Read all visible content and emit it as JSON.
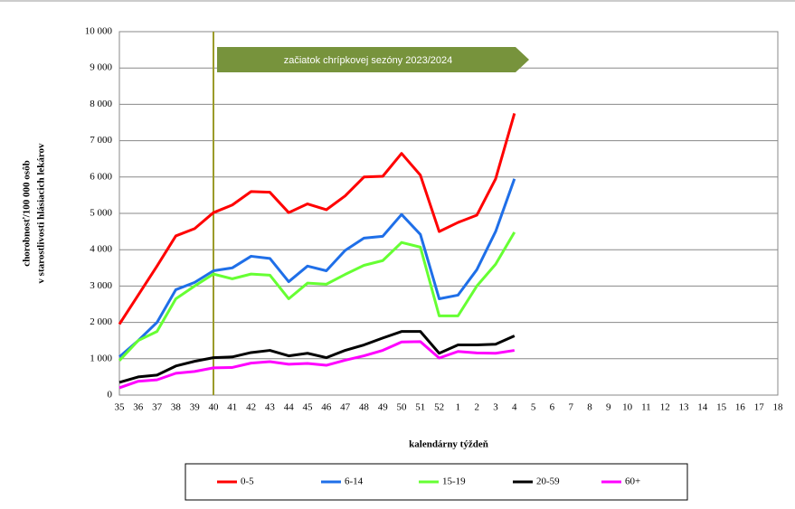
{
  "chart_data": {
    "type": "line",
    "y_label": [
      "chorobnosť/100 000 osôb",
      "v starostlivosti hlásiacich lekárov"
    ],
    "x_label": "kalendárny týždeň",
    "annotation": {
      "text": "začiatok chrípkovej sezóny 2023/2024",
      "category": "40"
    },
    "categories": [
      "35",
      "36",
      "37",
      "38",
      "39",
      "40",
      "41",
      "42",
      "43",
      "44",
      "45",
      "46",
      "47",
      "48",
      "49",
      "50",
      "51",
      "52",
      "1",
      "2",
      "3",
      "4",
      "5",
      "6",
      "7",
      "8",
      "9",
      "10",
      "11",
      "12",
      "13",
      "14",
      "15",
      "16",
      "17",
      "18"
    ],
    "series": [
      {
        "name": "0-5",
        "color": "#ff0000",
        "values": [
          1950,
          2750,
          3550,
          4380,
          4580,
          5020,
          5230,
          5600,
          5580,
          5020,
          5260,
          5100,
          5480,
          6000,
          6020,
          6650,
          6050,
          4500,
          4750,
          4950,
          5950,
          7750,
          null,
          null,
          null,
          null,
          null,
          null,
          null,
          null,
          null,
          null,
          null,
          null,
          null,
          null
        ]
      },
      {
        "name": "6-14",
        "color": "#1f6fe8",
        "values": [
          1050,
          1500,
          2000,
          2900,
          3100,
          3420,
          3500,
          3820,
          3760,
          3120,
          3550,
          3420,
          3980,
          4320,
          4370,
          4970,
          4420,
          2650,
          2750,
          3450,
          4500,
          5950,
          null,
          null,
          null,
          null,
          null,
          null,
          null,
          null,
          null,
          null,
          null,
          null,
          null,
          null
        ]
      },
      {
        "name": "15-19",
        "color": "#66ff33",
        "values": [
          950,
          1500,
          1750,
          2650,
          3000,
          3330,
          3200,
          3330,
          3300,
          2650,
          3080,
          3050,
          3320,
          3570,
          3700,
          4200,
          4070,
          2180,
          2180,
          3000,
          3600,
          4480,
          null,
          null,
          null,
          null,
          null,
          null,
          null,
          null,
          null,
          null,
          null,
          null,
          null,
          null
        ]
      },
      {
        "name": "20-59",
        "color": "#000000",
        "values": [
          350,
          500,
          550,
          800,
          930,
          1030,
          1050,
          1170,
          1230,
          1080,
          1150,
          1030,
          1230,
          1380,
          1570,
          1750,
          1750,
          1150,
          1380,
          1380,
          1400,
          1630,
          null,
          null,
          null,
          null,
          null,
          null,
          null,
          null,
          null,
          null,
          null,
          null,
          null,
          null
        ]
      },
      {
        "name": "60+",
        "color": "#ff00ff",
        "values": [
          200,
          380,
          420,
          600,
          650,
          750,
          760,
          880,
          920,
          850,
          870,
          820,
          960,
          1080,
          1230,
          1460,
          1470,
          1020,
          1200,
          1160,
          1150,
          1230,
          null,
          null,
          null,
          null,
          null,
          null,
          null,
          null,
          null,
          null,
          null,
          null,
          null,
          null
        ]
      }
    ],
    "ylim": [
      0,
      10000
    ],
    "yticks": [
      {
        "value": 0,
        "label": "0"
      },
      {
        "value": 1000,
        "label": "1 000"
      },
      {
        "value": 2000,
        "label": "2 000"
      },
      {
        "value": 3000,
        "label": "3 000"
      },
      {
        "value": 4000,
        "label": "4 000"
      },
      {
        "value": 5000,
        "label": "5 000"
      },
      {
        "value": 6000,
        "label": "6 000"
      },
      {
        "value": 7000,
        "label": "7 000"
      },
      {
        "value": 8000,
        "label": "8 000"
      },
      {
        "value": 9000,
        "label": "9 000"
      },
      {
        "value": 10000,
        "label": "10 000"
      }
    ],
    "grid": true,
    "legend": "bottom"
  }
}
